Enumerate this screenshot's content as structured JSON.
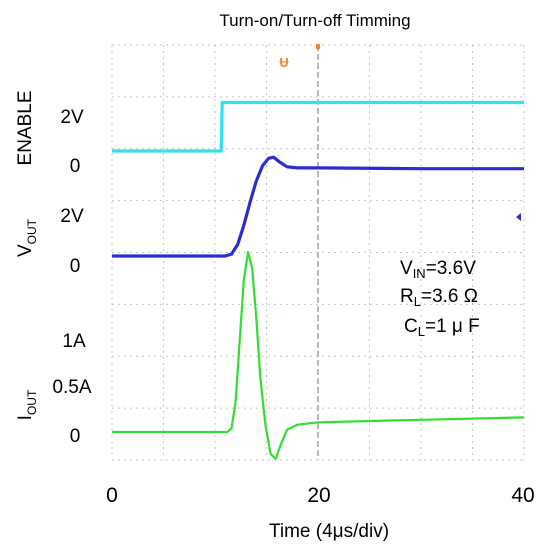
{
  "chart_data": {
    "type": "line",
    "title": "Turn-on/Turn-off Timming",
    "xlabel": "Time (4μs/div)",
    "x_ticks": [
      "0",
      "20",
      "40"
    ],
    "xlim": [
      0,
      40
    ],
    "channel_labels": {
      "enable": "ENABLE",
      "vout_main": "V",
      "vout_sub": "OUT",
      "iout_main": "I",
      "iout_sub": "OUT"
    },
    "y_tick_labels": {
      "enable": [
        "2V",
        "0"
      ],
      "vout": [
        "2V",
        "0"
      ],
      "iout": [
        "1A",
        "0.5A",
        "0"
      ]
    },
    "grid": true,
    "annotations": [
      {
        "main": "V",
        "sub": "IN",
        "rest": "=3.6V"
      },
      {
        "main": "R",
        "sub": "L",
        "rest": "=3.6 Ω"
      },
      {
        "main": "C",
        "sub": "L",
        "rest": "=1 μ F"
      }
    ],
    "series": [
      {
        "name": "ENABLE",
        "color": "#33e0f0",
        "points": [
          [
            0,
            0
          ],
          [
            10.6,
            0
          ],
          [
            10.7,
            2.5
          ],
          [
            40,
            2.5
          ]
        ]
      },
      {
        "name": "VOUT",
        "color": "#2a2ecf",
        "points": [
          [
            0,
            0
          ],
          [
            11,
            0
          ],
          [
            11.6,
            0.05
          ],
          [
            12.2,
            0.3
          ],
          [
            12.8,
            0.8
          ],
          [
            13.4,
            1.4
          ],
          [
            14.0,
            1.95
          ],
          [
            14.6,
            2.35
          ],
          [
            15.2,
            2.55
          ],
          [
            15.7,
            2.58
          ],
          [
            16.3,
            2.45
          ],
          [
            17.0,
            2.33
          ],
          [
            18.0,
            2.3
          ],
          [
            20,
            2.3
          ],
          [
            30,
            2.28
          ],
          [
            40,
            2.28
          ]
        ]
      },
      {
        "name": "IOUT",
        "color": "#33dd33",
        "points": [
          [
            0,
            0
          ],
          [
            11.2,
            0
          ],
          [
            11.6,
            0.03
          ],
          [
            12.0,
            0.25
          ],
          [
            12.4,
            0.75
          ],
          [
            12.8,
            1.25
          ],
          [
            13.2,
            1.48
          ],
          [
            13.6,
            1.35
          ],
          [
            14.0,
            0.95
          ],
          [
            14.4,
            0.45
          ],
          [
            14.9,
            0.05
          ],
          [
            15.4,
            -0.18
          ],
          [
            15.9,
            -0.22
          ],
          [
            16.4,
            -0.1
          ],
          [
            17.0,
            0.02
          ],
          [
            18.0,
            0.06
          ],
          [
            20,
            0.08
          ],
          [
            30,
            0.1
          ],
          [
            40,
            0.12
          ]
        ]
      }
    ]
  }
}
